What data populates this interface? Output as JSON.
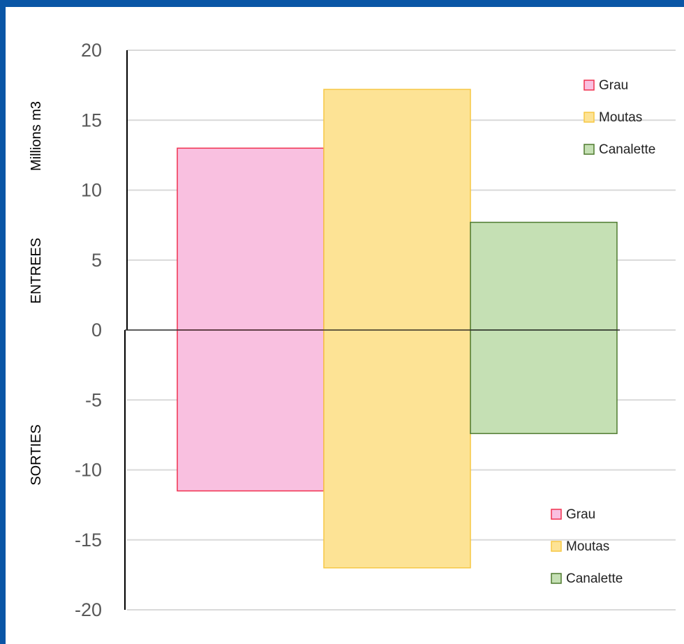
{
  "chart_data": {
    "type": "bar",
    "bar_style": "stacked-diverging, no gaps",
    "ylabel_top": "Millions m3",
    "ylabel_upper": "ENTREES",
    "ylabel_lower": "SORTIES",
    "ylim": [
      -20,
      20
    ],
    "yticks": [
      20,
      15,
      10,
      5,
      0,
      -5,
      -10,
      -15,
      -20
    ],
    "ytick_labels": [
      "20",
      "15",
      "10",
      "5",
      "0",
      "-5",
      "-10",
      "-15",
      "-20"
    ],
    "grid": true,
    "series": [
      {
        "name": "Grau",
        "entrees": 13.0,
        "sorties": -11.5,
        "fill": "#f9c0e0",
        "stroke": "#f0304f"
      },
      {
        "name": "Moutas",
        "entrees": 17.2,
        "sorties": -17.0,
        "fill": "#fde395",
        "stroke": "#f6c744"
      },
      {
        "name": "Canalette",
        "entrees": 7.7,
        "sorties": -7.4,
        "fill": "#c5e0b4",
        "stroke": "#4e7a2f"
      }
    ],
    "legend_entrees": {
      "placement": "top-right",
      "labels": [
        "Grau",
        "Moutas",
        "Canalette"
      ]
    },
    "legend_sorties": {
      "placement": "bottom-right",
      "labels": [
        "Grau",
        "Moutas",
        "Canalette"
      ]
    }
  }
}
